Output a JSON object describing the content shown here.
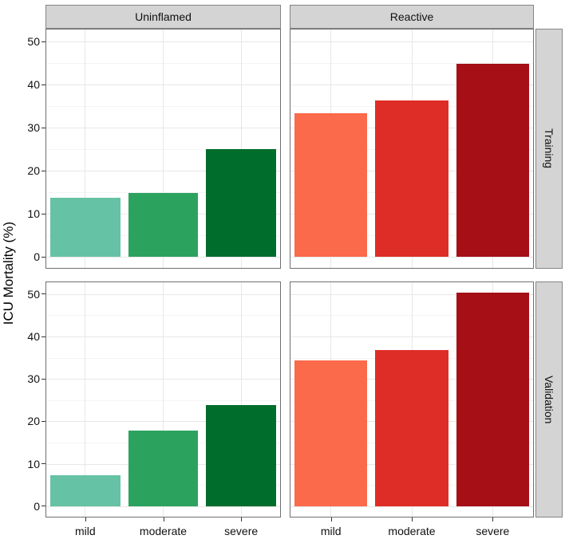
{
  "chart_data": {
    "type": "bar",
    "title": "",
    "ylabel": "ICU Mortality (%)",
    "xlabel": "",
    "categories": [
      "mild",
      "moderate",
      "severe"
    ],
    "facets": {
      "columns": [
        "Uninflamed",
        "Reactive"
      ],
      "rows": [
        "Training",
        "Validation"
      ]
    },
    "ylim": [
      0,
      50
    ],
    "y_major_ticks": [
      0,
      10,
      20,
      30,
      40,
      50
    ],
    "y_minor_ticks": [
      5,
      15,
      25,
      35,
      45
    ],
    "y_tick_labels": [
      "0",
      "10",
      "20",
      "30",
      "40",
      "50"
    ],
    "grid": true,
    "legend": "none",
    "bar_width_fraction": 0.9,
    "panels": [
      {
        "row": "Training",
        "column": "Uninflamed",
        "categories": [
          "mild",
          "moderate",
          "severe"
        ],
        "values": [
          13.7,
          14.8,
          25.0
        ],
        "colors": [
          "#66c2a4",
          "#2ca25f",
          "#006d2c"
        ]
      },
      {
        "row": "Training",
        "column": "Reactive",
        "categories": [
          "mild",
          "moderate",
          "severe"
        ],
        "values": [
          33.4,
          36.3,
          44.9
        ],
        "colors": [
          "#fb6a4a",
          "#de2d26",
          "#a50f15"
        ]
      },
      {
        "row": "Validation",
        "column": "Uninflamed",
        "categories": [
          "mild",
          "moderate",
          "severe"
        ],
        "values": [
          7.2,
          17.9,
          23.8
        ],
        "colors": [
          "#66c2a4",
          "#2ca25f",
          "#006d2c"
        ]
      },
      {
        "row": "Validation",
        "column": "Reactive",
        "categories": [
          "mild",
          "moderate",
          "severe"
        ],
        "values": [
          34.3,
          36.8,
          50.3
        ],
        "colors": [
          "#fb6a4a",
          "#de2d26",
          "#a50f15"
        ]
      }
    ],
    "palette": {
      "uninflamed_greens": [
        "#66c2a4",
        "#2ca25f",
        "#006d2c"
      ],
      "reactive_reds": [
        "#fb6a4a",
        "#de2d26",
        "#a50f15"
      ],
      "strip_fill": "#d4d4d4",
      "strip_border": "#848484",
      "panel_border": "#707070",
      "gridline_major": "#e7e7e7",
      "gridline_minor": "#f4f4f4",
      "tick_color": "#333333",
      "text_color": "#111111"
    }
  }
}
